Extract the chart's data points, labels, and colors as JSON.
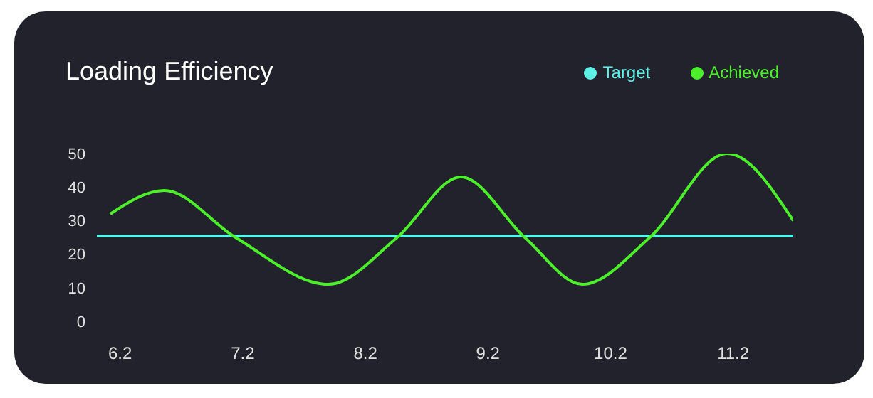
{
  "chart_data": {
    "type": "line",
    "title": "Loading Efficiency",
    "xlim": [
      6.01,
      11.69
    ],
    "xticks": [
      6.2,
      7.2,
      8.2,
      9.2,
      10.2,
      11.2
    ],
    "ylim": [
      0,
      50
    ],
    "yticks": [
      0,
      10,
      20,
      30,
      40,
      50
    ],
    "grid": false,
    "legend": "top right",
    "marker": "none",
    "line_style": "solid",
    "series": [
      {
        "name": "Target",
        "color": "#5ef2e6",
        "x": [
          6.01,
          11.69
        ],
        "values": [
          25.4,
          25.4
        ]
      },
      {
        "name": "Achieved",
        "color": "#4cf02a",
        "x": [
          6.12,
          6.56,
          7.14,
          7.9,
          8.46,
          8.98,
          9.5,
          9.97,
          10.52,
          11.15,
          11.69
        ],
        "values": [
          32,
          39,
          25,
          11,
          25,
          43,
          25,
          11,
          25,
          50,
          30
        ]
      }
    ]
  }
}
